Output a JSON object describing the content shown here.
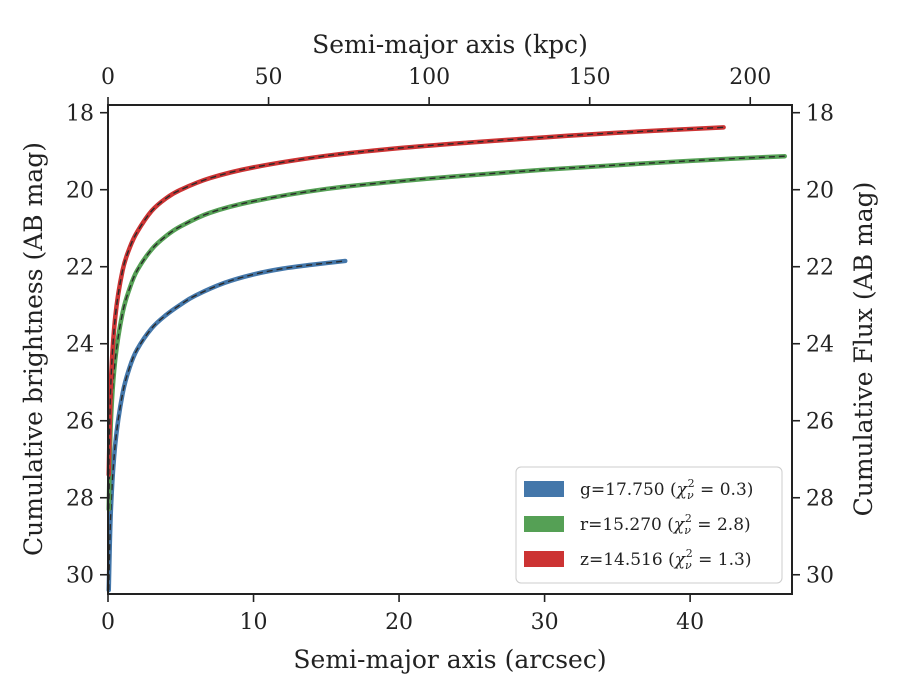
{
  "chart_data": {
    "type": "line",
    "xlabel": "Semi-major axis (arcsec)",
    "x2label": "Semi-major axis (kpc)",
    "ylabel": "Cumulative brightness (AB mag)",
    "y2label": "Cumulative Flux (AB mag)",
    "xlim": [
      0,
      47
    ],
    "x2lim": [
      0,
      213
    ],
    "ylim": [
      30.5,
      17.8
    ],
    "y_inverted": true,
    "xticks": [
      "0",
      "10",
      "20",
      "30",
      "40"
    ],
    "x2ticks": [
      "0",
      "50",
      "100",
      "150",
      "200"
    ],
    "yticks": [
      "18",
      "20",
      "22",
      "24",
      "26",
      "28",
      "30"
    ],
    "grid": false,
    "legend_position": "bottom-right",
    "series": [
      {
        "name": "g=17.750",
        "chi2": "0.3",
        "color": "#4477aa",
        "x": [
          0.05,
          0.2,
          0.5,
          1.0,
          1.5,
          2.0,
          3.0,
          4.0,
          5.0,
          6.0,
          8.0,
          10.0,
          12.0,
          14.0,
          16.3
        ],
        "y": [
          30.4,
          28.3,
          26.6,
          25.3,
          24.6,
          24.15,
          23.6,
          23.25,
          22.98,
          22.75,
          22.42,
          22.2,
          22.05,
          21.95,
          21.85
        ]
      },
      {
        "name": "r=15.270",
        "chi2": "2.8",
        "color": "#55a055",
        "x": [
          0.05,
          0.2,
          0.5,
          1.0,
          1.5,
          2.0,
          3.0,
          4.0,
          5.0,
          7.0,
          10.0,
          15.0,
          20.0,
          25.0,
          30.0,
          35.0,
          40.0,
          46.5
        ],
        "y": [
          28.3,
          26.0,
          24.4,
          23.2,
          22.55,
          22.1,
          21.55,
          21.2,
          20.95,
          20.6,
          20.3,
          19.98,
          19.78,
          19.62,
          19.48,
          19.36,
          19.25,
          19.13
        ]
      },
      {
        "name": "z=14.516",
        "chi2": "1.3",
        "color": "#cc3333",
        "x": [
          0.05,
          0.2,
          0.5,
          1.0,
          1.5,
          2.0,
          3.0,
          4.0,
          5.0,
          7.0,
          10.0,
          15.0,
          20.0,
          25.0,
          30.0,
          35.0,
          42.3
        ],
        "y": [
          27.4,
          25.0,
          23.3,
          22.1,
          21.5,
          21.1,
          20.55,
          20.22,
          20.0,
          19.7,
          19.42,
          19.12,
          18.92,
          18.77,
          18.64,
          18.52,
          18.38
        ]
      }
    ]
  }
}
